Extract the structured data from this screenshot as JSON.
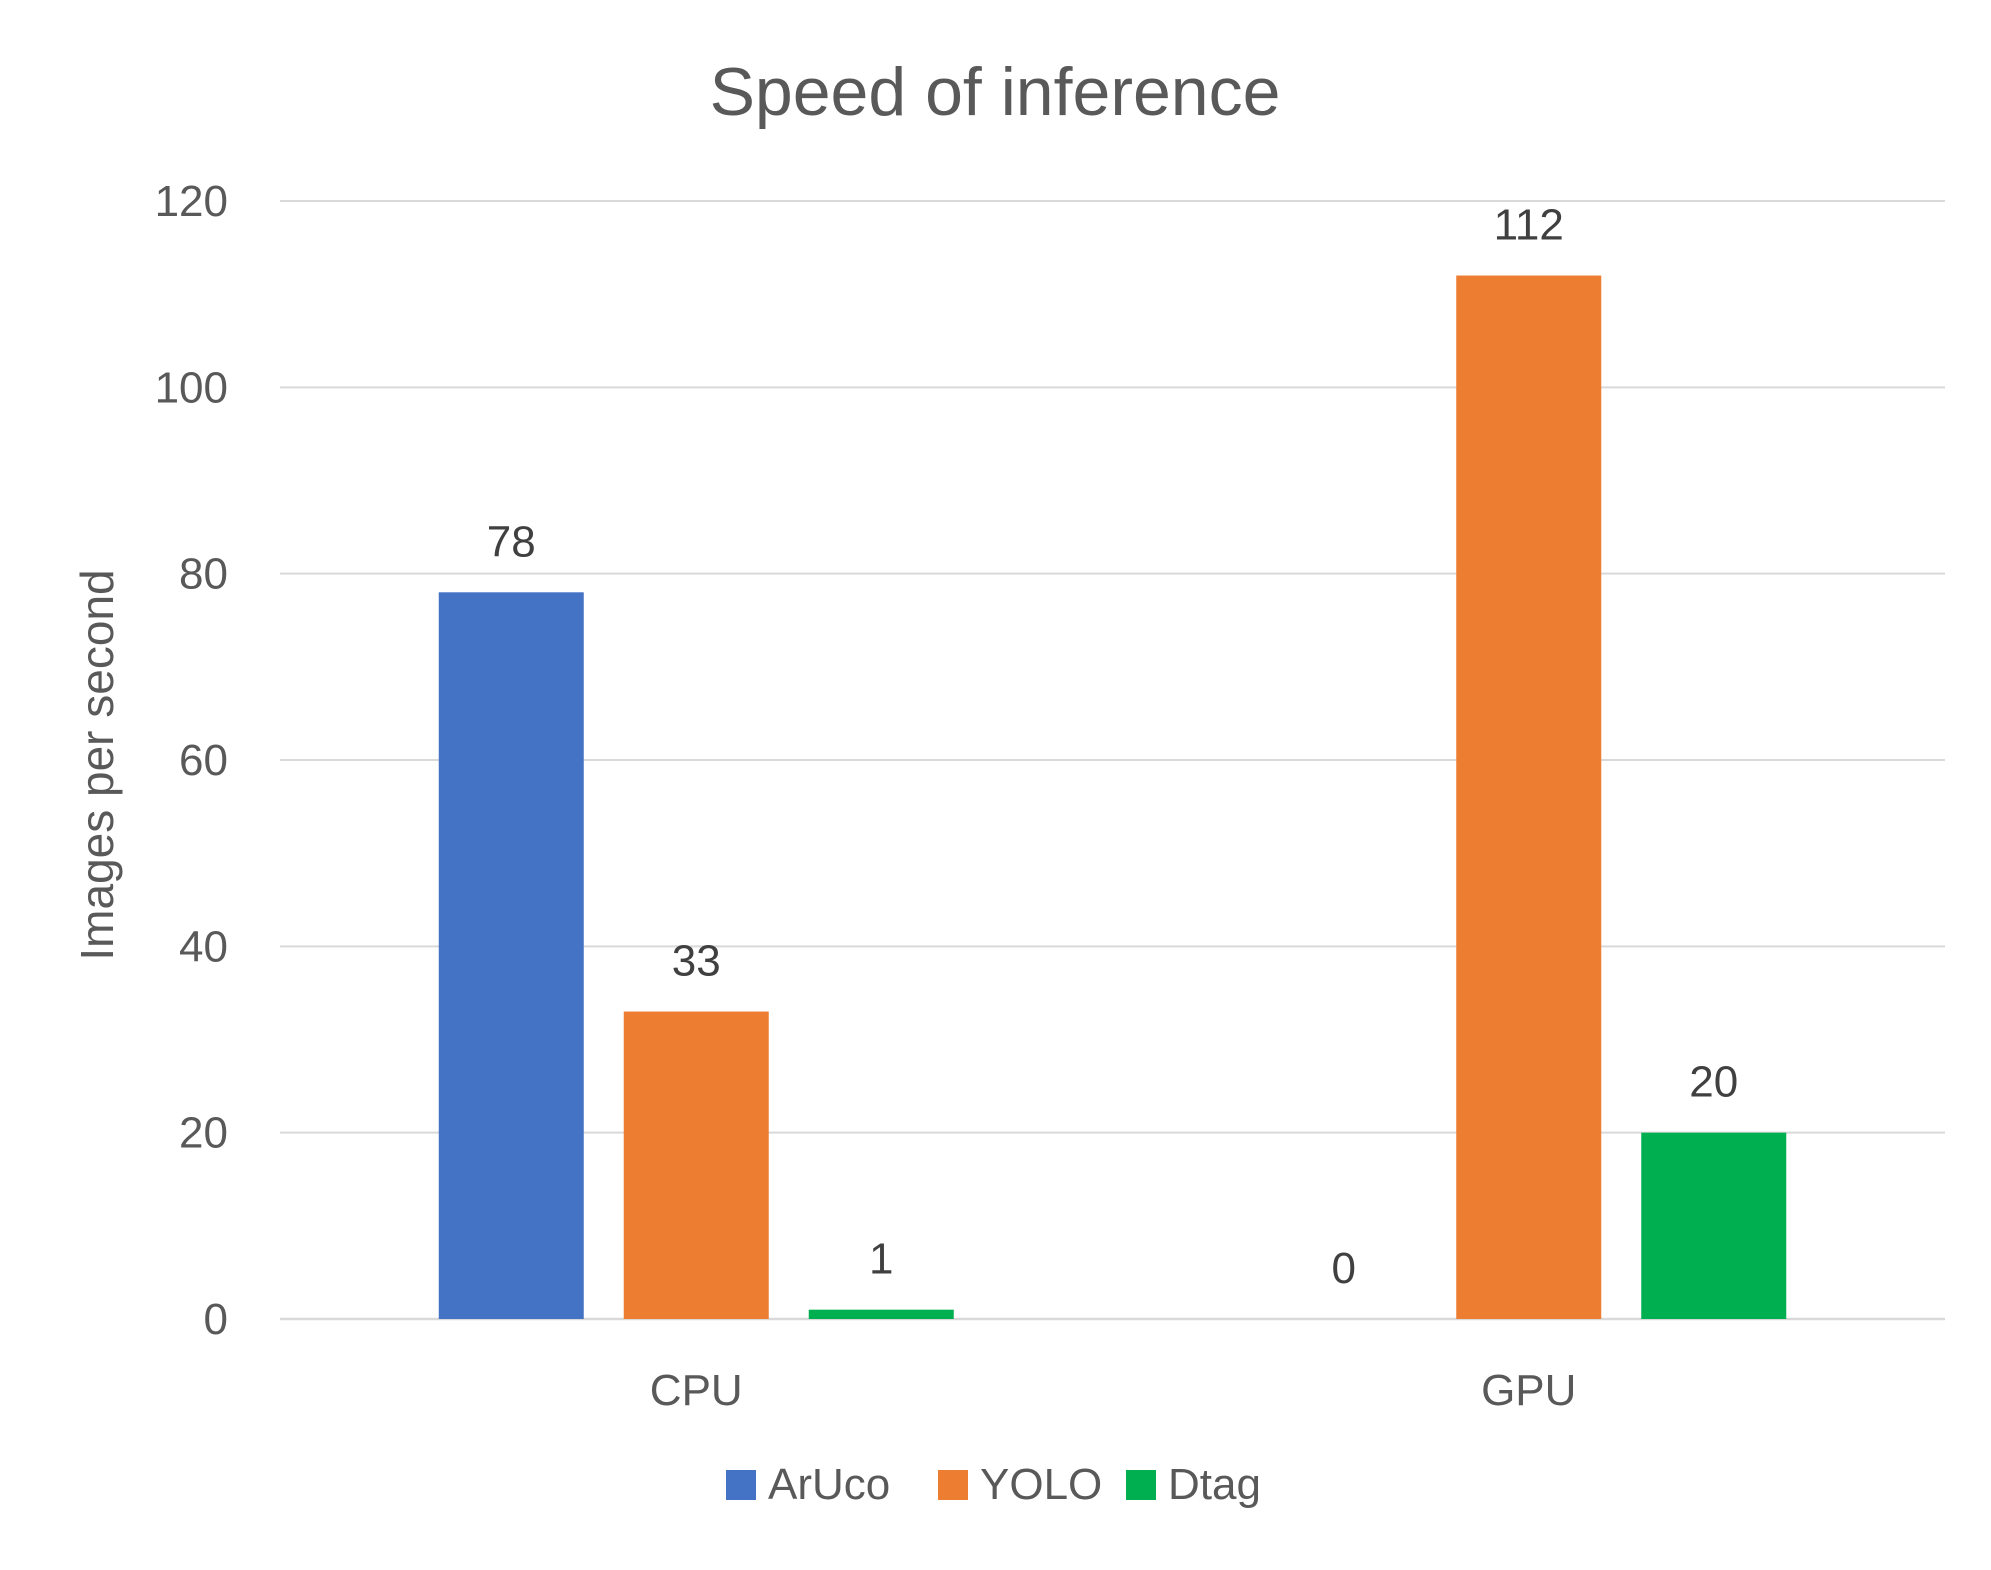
{
  "chart_data": {
    "type": "bar",
    "title": "Speed of inference",
    "xlabel": "",
    "ylabel": "Images per second",
    "categories": [
      "CPU",
      "GPU"
    ],
    "series": [
      {
        "name": "ArUco",
        "color": "#4472c4",
        "values": [
          78,
          0
        ]
      },
      {
        "name": "YOLO",
        "color": "#ed7d31",
        "values": [
          33,
          112
        ]
      },
      {
        "name": "Dtag",
        "color": "#00b050",
        "values": [
          1,
          20
        ]
      }
    ],
    "ylim": [
      0,
      120
    ],
    "yticks": [
      "0",
      "20",
      "40",
      "60",
      "80",
      "100",
      "120"
    ],
    "grid": true,
    "legend": "bottom"
  }
}
